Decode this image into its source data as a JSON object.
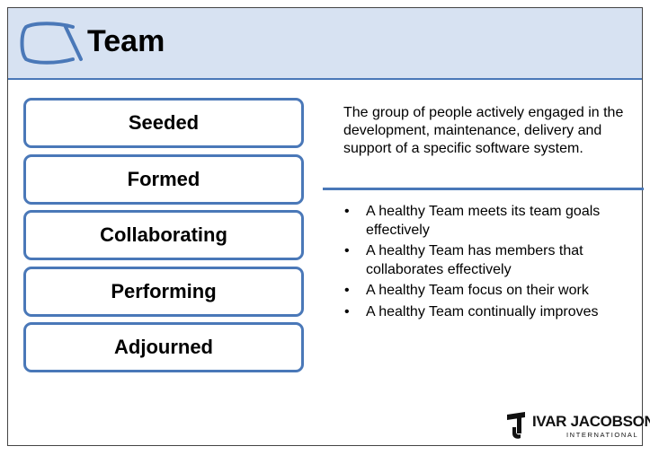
{
  "header": {
    "title": "Team",
    "icon": "alpha-icon"
  },
  "states": [
    {
      "label": "Seeded"
    },
    {
      "label": "Formed"
    },
    {
      "label": "Collaborating"
    },
    {
      "label": "Performing"
    },
    {
      "label": "Adjourned"
    }
  ],
  "description": "The group of people actively engaged in the development,  maintenance, delivery and support of a specific software system.",
  "bullets": [
    {
      "text": "A healthy Team meets its team goals effectively"
    },
    {
      "text": "A healthy Team has members that collaborates effectively"
    },
    {
      "text": "A healthy Team focus on their work"
    },
    {
      "text": "A healthy Team continually improves"
    }
  ],
  "bullet_symbol": "•",
  "logo": {
    "name": "IVAR JACOBSON",
    "sub": "INTERNATIONAL"
  },
  "colors": {
    "accent": "#4a78b8",
    "header_bg": "#d7e2f2"
  }
}
